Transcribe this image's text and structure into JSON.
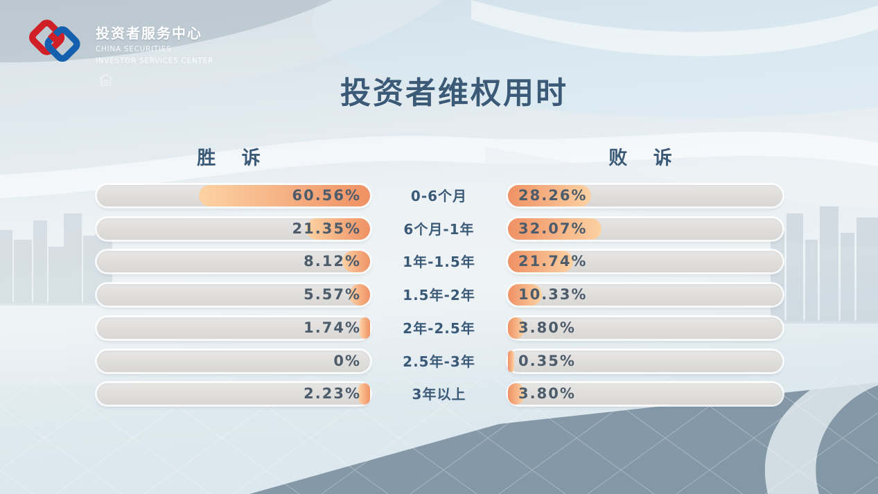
{
  "brand": {
    "name_cn": "投资者服务中心",
    "name_en_line1": "CHINA SECURITIES",
    "name_en_line2": "INVESTOR SERVICES CENTER"
  },
  "page_title": "投资者维权用时",
  "chart_data": {
    "type": "bar",
    "layout": "mirrored-horizontal-bars",
    "title": "投资者维权用时",
    "categories": [
      "0-6个月",
      "6个月-1年",
      "1年-1.5年",
      "1.5年-2年",
      "2年-2.5年",
      "2.5年-3年",
      "3年以上"
    ],
    "series": [
      {
        "name": "胜 诉",
        "side": "left",
        "values": [
          60.56,
          21.35,
          8.12,
          5.57,
          1.74,
          0,
          2.23
        ],
        "labels": [
          "60.56%",
          "21.35%",
          "8.12%",
          "5.57%",
          "1.74%",
          "0%",
          "2.23%"
        ]
      },
      {
        "name": "败 诉",
        "side": "right",
        "values": [
          28.26,
          32.07,
          21.74,
          10.33,
          3.8,
          0.35,
          3.8
        ],
        "labels": [
          "28.26%",
          "32.07%",
          "21.74%",
          "10.33%",
          "3.80%",
          "0.35%",
          "3.80%"
        ]
      }
    ],
    "value_axis_range": [
      0,
      100
    ],
    "grid": false,
    "colors": {
      "fill_dark": "#ef9164",
      "fill_light": "#fcd2a3",
      "bar_track": "#d8d7d5",
      "value_text": "#4d5c6b",
      "heading_text": "#3b5a77",
      "logo_red": "#d01f26",
      "logo_blue": "#1560ae"
    }
  }
}
